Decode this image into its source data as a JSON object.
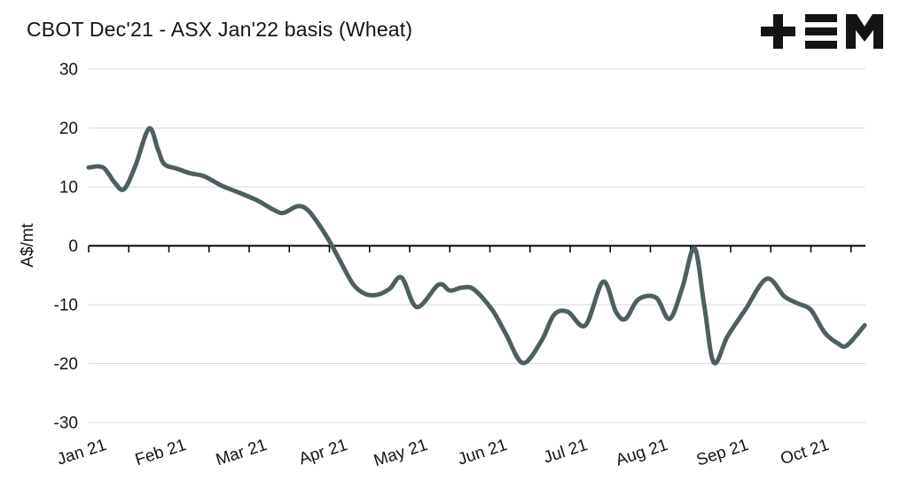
{
  "title": "CBOT Dec'21 - ASX Jan'22 basis (Wheat)",
  "logo": {
    "name": "tem-logo"
  },
  "chart_data": {
    "type": "line",
    "title": "CBOT Dec'21 - ASX Jan'22 basis (Wheat)",
    "xlabel": "",
    "ylabel": "A$/mt",
    "ylim": [
      -30,
      30
    ],
    "y_ticks": [
      30,
      20,
      10,
      0,
      -10,
      -20,
      -30
    ],
    "x_tick_labels": [
      "Jan 21",
      "Feb 21",
      "Mar 21",
      "Apr 21",
      "May 21",
      "Jun 21",
      "Jul 21",
      "Aug 21",
      "Sep 21",
      "Oct 21"
    ],
    "x_unit": "months since Jan 2021 (0 = Jan 21 tick)",
    "grid": true,
    "legend": "none",
    "line_color": "#4d5f61",
    "series": [
      {
        "name": "CBOT Dec'21 - ASX Jan'22 basis",
        "points": [
          [
            0.0,
            13.3
          ],
          [
            0.18,
            13.3
          ],
          [
            0.32,
            10.8
          ],
          [
            0.44,
            9.6
          ],
          [
            0.58,
            13.5
          ],
          [
            0.75,
            19.9
          ],
          [
            0.86,
            16.5
          ],
          [
            0.94,
            13.9
          ],
          [
            1.1,
            13.1
          ],
          [
            1.27,
            12.3
          ],
          [
            1.44,
            11.8
          ],
          [
            1.66,
            10.2
          ],
          [
            1.88,
            9.0
          ],
          [
            2.1,
            7.7
          ],
          [
            2.32,
            6.0
          ],
          [
            2.43,
            5.6
          ],
          [
            2.6,
            6.7
          ],
          [
            2.72,
            6.2
          ],
          [
            2.85,
            4.0
          ],
          [
            3.0,
            0.8
          ],
          [
            3.15,
            -3.0
          ],
          [
            3.3,
            -6.6
          ],
          [
            3.45,
            -8.2
          ],
          [
            3.6,
            -8.3
          ],
          [
            3.75,
            -7.3
          ],
          [
            3.9,
            -5.4
          ],
          [
            4.09,
            -10.4
          ],
          [
            4.36,
            -6.6
          ],
          [
            4.5,
            -7.6
          ],
          [
            4.65,
            -7.1
          ],
          [
            4.8,
            -7.4
          ],
          [
            5.03,
            -10.9
          ],
          [
            5.2,
            -15.0
          ],
          [
            5.41,
            -19.9
          ],
          [
            5.64,
            -16.2
          ],
          [
            5.8,
            -11.7
          ],
          [
            5.97,
            -11.2
          ],
          [
            6.19,
            -13.5
          ],
          [
            6.41,
            -6.1
          ],
          [
            6.57,
            -11.2
          ],
          [
            6.69,
            -12.4
          ],
          [
            6.85,
            -9.1
          ],
          [
            7.07,
            -8.8
          ],
          [
            7.24,
            -12.4
          ],
          [
            7.4,
            -7.0
          ],
          [
            7.55,
            -0.4
          ],
          [
            7.67,
            -10.0
          ],
          [
            7.79,
            -19.8
          ],
          [
            7.96,
            -15.4
          ],
          [
            8.18,
            -10.9
          ],
          [
            8.45,
            -5.6
          ],
          [
            8.67,
            -8.6
          ],
          [
            8.84,
            -9.8
          ],
          [
            9.0,
            -10.9
          ],
          [
            9.17,
            -14.7
          ],
          [
            9.34,
            -16.6
          ],
          [
            9.45,
            -16.9
          ],
          [
            9.67,
            -13.5
          ]
        ]
      }
    ]
  }
}
